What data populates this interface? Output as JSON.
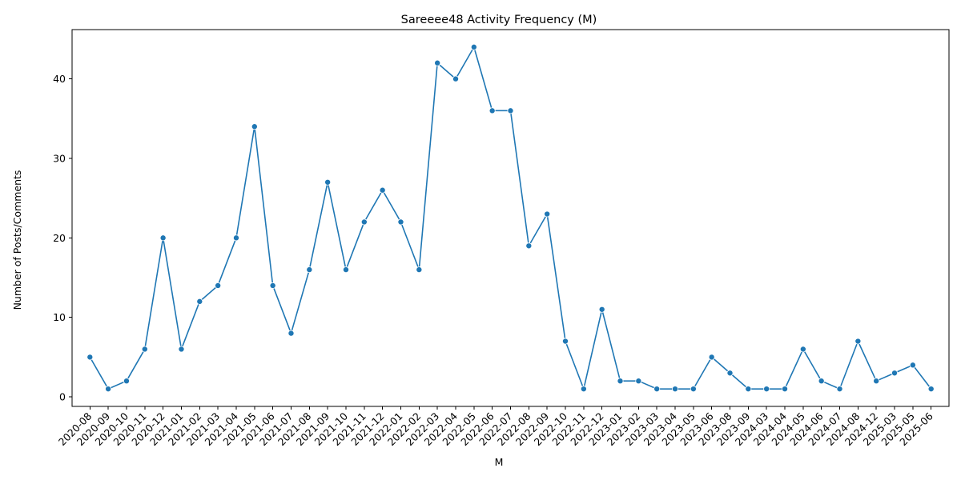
{
  "chart_data": {
    "type": "line",
    "title": "Sareeee48 Activity Frequency (M)",
    "xlabel": "M",
    "ylabel": "Number of Posts/Comments",
    "x": [
      "2020-08",
      "2020-09",
      "2020-10",
      "2020-11",
      "2020-12",
      "2021-01",
      "2021-02",
      "2021-03",
      "2021-04",
      "2021-05",
      "2021-06",
      "2021-07",
      "2021-08",
      "2021-09",
      "2021-10",
      "2021-11",
      "2021-12",
      "2022-01",
      "2022-02",
      "2022-03",
      "2022-04",
      "2022-05",
      "2022-06",
      "2022-07",
      "2022-08",
      "2022-09",
      "2022-10",
      "2022-11",
      "2022-12",
      "2023-01",
      "2023-02",
      "2023-03",
      "2023-04",
      "2023-05",
      "2023-06",
      "2023-08",
      "2023-09",
      "2024-03",
      "2024-04",
      "2024-05",
      "2024-06",
      "2024-07",
      "2024-08",
      "2024-12",
      "2025-03",
      "2025-05",
      "2025-06"
    ],
    "series": [
      {
        "values": [
          5,
          1,
          2,
          6,
          20,
          6,
          12,
          14,
          20,
          34,
          14,
          8,
          16,
          27,
          16,
          22,
          26,
          22,
          16,
          42,
          40,
          44,
          36,
          36,
          19,
          23,
          7,
          1,
          11,
          2,
          2,
          1,
          1,
          1,
          5,
          3,
          1,
          1,
          1,
          6,
          2,
          1,
          7,
          2,
          3,
          4,
          1
        ],
        "color": "#1f77b4",
        "marker": "circle"
      }
    ],
    "yticks": [
      0,
      10,
      20,
      30,
      40
    ],
    "ylim": [
      -1.2,
      46.2
    ],
    "grid": false,
    "legend": "none"
  }
}
